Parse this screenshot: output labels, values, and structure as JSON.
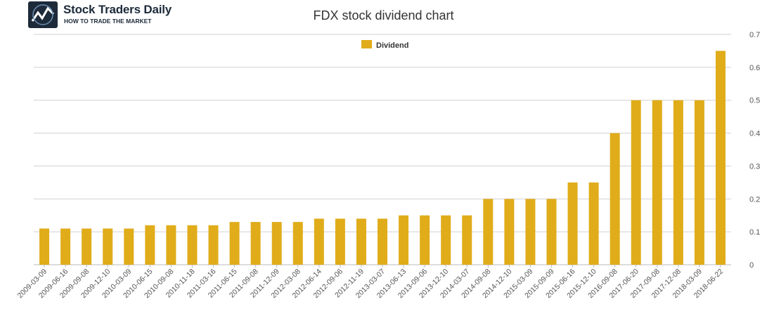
{
  "logo": {
    "title": "Stock Traders Daily",
    "subtitle": "HOW TO TRADE THE MARKET"
  },
  "chart_data": {
    "type": "bar",
    "title": "FDX stock dividend chart",
    "xlabel": "",
    "ylabel": "",
    "ylim": [
      0,
      0.7
    ],
    "yticks": [
      "0",
      "0.1",
      "0.2",
      "0.3",
      "0.4",
      "0.5",
      "0.6",
      "0.7"
    ],
    "grid": true,
    "y_axis_side": "right",
    "legend_position": "top-center",
    "categories": [
      "2009-03-09",
      "2009-06-16",
      "2009-09-08",
      "2009-12-10",
      "2010-03-09",
      "2010-06-15",
      "2010-09-08",
      "2010-11-18",
      "2011-03-16",
      "2011-06-15",
      "2011-09-08",
      "2011-12-09",
      "2012-03-08",
      "2012-06-14",
      "2012-09-06",
      "2012-11-19",
      "2013-03-07",
      "2013-06-13",
      "2013-09-06",
      "2013-12-10",
      "2014-03-07",
      "2014-09-08",
      "2014-12-10",
      "2015-03-09",
      "2015-09-09",
      "2015-06-16",
      "2015-12-10",
      "2016-09-08",
      "2017-06-20",
      "2017-09-08",
      "2017-12-08",
      "2018-03-09",
      "2018-06-22"
    ],
    "series": [
      {
        "name": "Dividend",
        "color": "#e0ac1a",
        "values": [
          0.11,
          0.11,
          0.11,
          0.11,
          0.11,
          0.12,
          0.12,
          0.12,
          0.12,
          0.13,
          0.13,
          0.13,
          0.13,
          0.14,
          0.14,
          0.14,
          0.14,
          0.15,
          0.15,
          0.15,
          0.15,
          0.2,
          0.2,
          0.2,
          0.2,
          0.25,
          0.25,
          0.4,
          0.5,
          0.5,
          0.5,
          0.5,
          0.65
        ]
      }
    ]
  }
}
